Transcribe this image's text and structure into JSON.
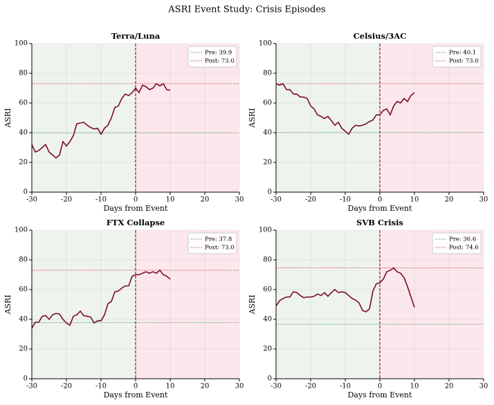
{
  "title": "ASRI Event Study: Crisis Episodes",
  "chart_data": [
    {
      "type": "line",
      "title": "Terra/Luna",
      "xlabel": "Days from Event",
      "ylabel": "ASRI",
      "x": [
        -30,
        -29,
        -28,
        -27,
        -26,
        -25,
        -24,
        -23,
        -22,
        -21,
        -20,
        -19,
        -18,
        -17,
        -16,
        -15,
        -14,
        -13,
        -12,
        -11,
        -10,
        -9,
        -8,
        -7,
        -6,
        -5,
        -4,
        -3,
        -2,
        -1,
        0,
        1,
        2,
        3,
        4,
        5,
        6,
        7,
        8,
        9,
        10
      ],
      "series": [
        {
          "name": "ASRI",
          "color": "#7a0a2a",
          "values": [
            32,
            27,
            28,
            30,
            32,
            27,
            25,
            23,
            25,
            34,
            31,
            34,
            38,
            46,
            46.5,
            47,
            45,
            43.5,
            42.5,
            43,
            39,
            43,
            45,
            50,
            57,
            58,
            63,
            66,
            65,
            67,
            70,
            67,
            72,
            71,
            69,
            70,
            73,
            71.5,
            73,
            69,
            68.5
          ]
        }
      ],
      "hlines": [
        {
          "name": "Pre: 39.9",
          "value": 39.9,
          "color": "#5a9a7a"
        },
        {
          "name": "Post: 73.0",
          "value": 73.0,
          "color": "#d05060"
        }
      ],
      "event_x": 0,
      "shade": {
        "before": "#eef3ee",
        "after": "#fce8ec"
      },
      "xlim": [
        -30,
        30
      ],
      "ylim": [
        0,
        100
      ],
      "xticks": [
        -30,
        -20,
        -10,
        0,
        10,
        20,
        30
      ],
      "yticks": [
        0,
        20,
        40,
        60,
        80,
        100
      ],
      "grid": true,
      "legend": "upper right"
    },
    {
      "type": "line",
      "title": "Celsius/3AC",
      "xlabel": "Days from Event",
      "ylabel": "ASRI",
      "x": [
        -30,
        -29,
        -28,
        -27,
        -26,
        -25,
        -24,
        -23,
        -22,
        -21,
        -20,
        -19,
        -18,
        -17,
        -16,
        -15,
        -14,
        -13,
        -12,
        -11,
        -10,
        -9,
        -8,
        -7,
        -6,
        -5,
        -4,
        -3,
        -2,
        -1,
        0,
        1,
        2,
        3,
        4,
        5,
        6,
        7,
        8,
        9,
        10
      ],
      "series": [
        {
          "name": "ASRI",
          "color": "#7a0a2a",
          "values": [
            73,
            72,
            73,
            69,
            69,
            66,
            66,
            64,
            64,
            63,
            58,
            56,
            52,
            51,
            49.5,
            51,
            48,
            45,
            47,
            43,
            41,
            39,
            43,
            45,
            44.5,
            45,
            46,
            47.5,
            48.5,
            52,
            52,
            55,
            56,
            52,
            58,
            61,
            60,
            63,
            61,
            65,
            67
          ]
        }
      ],
      "hlines": [
        {
          "name": "Pre: 40.1",
          "value": 40.1,
          "color": "#5a9a7a"
        },
        {
          "name": "Post: 73.0",
          "value": 73.0,
          "color": "#d05060"
        }
      ],
      "event_x": 0,
      "shade": {
        "before": "#eef3ee",
        "after": "#fce8ec"
      },
      "xlim": [
        -30,
        30
      ],
      "ylim": [
        0,
        100
      ],
      "xticks": [
        -30,
        -20,
        -10,
        0,
        10,
        20,
        30
      ],
      "yticks": [
        0,
        20,
        40,
        60,
        80,
        100
      ],
      "grid": true,
      "legend": "upper right"
    },
    {
      "type": "line",
      "title": "FTX Collapse",
      "xlabel": "Days from Event",
      "ylabel": "ASRI",
      "x": [
        -30,
        -29,
        -28,
        -27,
        -26,
        -25,
        -24,
        -23,
        -22,
        -21,
        -20,
        -19,
        -18,
        -17,
        -16,
        -15,
        -14,
        -13,
        -12,
        -11,
        -10,
        -9,
        -8,
        -7,
        -6,
        -5,
        -4,
        -3,
        -2,
        -1,
        0,
        1,
        2,
        3,
        4,
        5,
        6,
        7,
        8,
        9,
        10
      ],
      "series": [
        {
          "name": "ASRI",
          "color": "#7a0a2a",
          "values": [
            34,
            38,
            38,
            42,
            42.5,
            40,
            43,
            44,
            43.5,
            40,
            37.5,
            36,
            42,
            43,
            45.5,
            42.5,
            42,
            41.5,
            37.5,
            39,
            39,
            43,
            50.5,
            52,
            58.5,
            59,
            61,
            62.5,
            62.5,
            69,
            70,
            70,
            71,
            72,
            71,
            72,
            71,
            73,
            70,
            69,
            67
          ]
        }
      ],
      "hlines": [
        {
          "name": "Pre: 37.8",
          "value": 37.8,
          "color": "#5a9a7a"
        },
        {
          "name": "Post: 73.0",
          "value": 73.0,
          "color": "#d05060"
        }
      ],
      "event_x": 0,
      "shade": {
        "before": "#eef3ee",
        "after": "#fce8ec"
      },
      "xlim": [
        -30,
        30
      ],
      "ylim": [
        0,
        100
      ],
      "xticks": [
        -30,
        -20,
        -10,
        0,
        10,
        20,
        30
      ],
      "yticks": [
        0,
        20,
        40,
        60,
        80,
        100
      ],
      "grid": true,
      "legend": "upper right"
    },
    {
      "type": "line",
      "title": "SVB Crisis",
      "xlabel": "Days from Event",
      "ylabel": "ASRI",
      "x": [
        -30,
        -29,
        -28,
        -27,
        -26,
        -25,
        -24,
        -23,
        -22,
        -21,
        -20,
        -19,
        -18,
        -17,
        -16,
        -15,
        -14,
        -13,
        -12,
        -11,
        -10,
        -9,
        -8,
        -7,
        -6,
        -5,
        -4,
        -3,
        -2,
        -1,
        0,
        1,
        2,
        3,
        4,
        5,
        6,
        7,
        8,
        9,
        10
      ],
      "series": [
        {
          "name": "ASRI",
          "color": "#7a0a2a",
          "values": [
            49,
            52.5,
            54,
            55,
            55,
            58.5,
            58,
            56,
            54.5,
            55,
            55,
            55.5,
            57,
            56,
            58,
            55.5,
            58,
            60,
            58,
            58.5,
            58,
            56,
            54,
            53,
            51,
            46,
            45,
            47,
            59,
            64,
            64.5,
            67,
            72,
            73,
            74.5,
            72,
            71,
            68,
            62,
            55,
            48
          ]
        }
      ],
      "hlines": [
        {
          "name": "Pre: 36.6",
          "value": 36.6,
          "color": "#5a9a7a"
        },
        {
          "name": "Post: 74.6",
          "value": 74.6,
          "color": "#d05060"
        }
      ],
      "event_x": 0,
      "shade": {
        "before": "#eef3ee",
        "after": "#fce8ec"
      },
      "xlim": [
        -30,
        30
      ],
      "ylim": [
        0,
        100
      ],
      "xticks": [
        -30,
        -20,
        -10,
        0,
        10,
        20,
        30
      ],
      "yticks": [
        0,
        20,
        40,
        60,
        80,
        100
      ],
      "grid": true,
      "legend": "upper right"
    }
  ]
}
